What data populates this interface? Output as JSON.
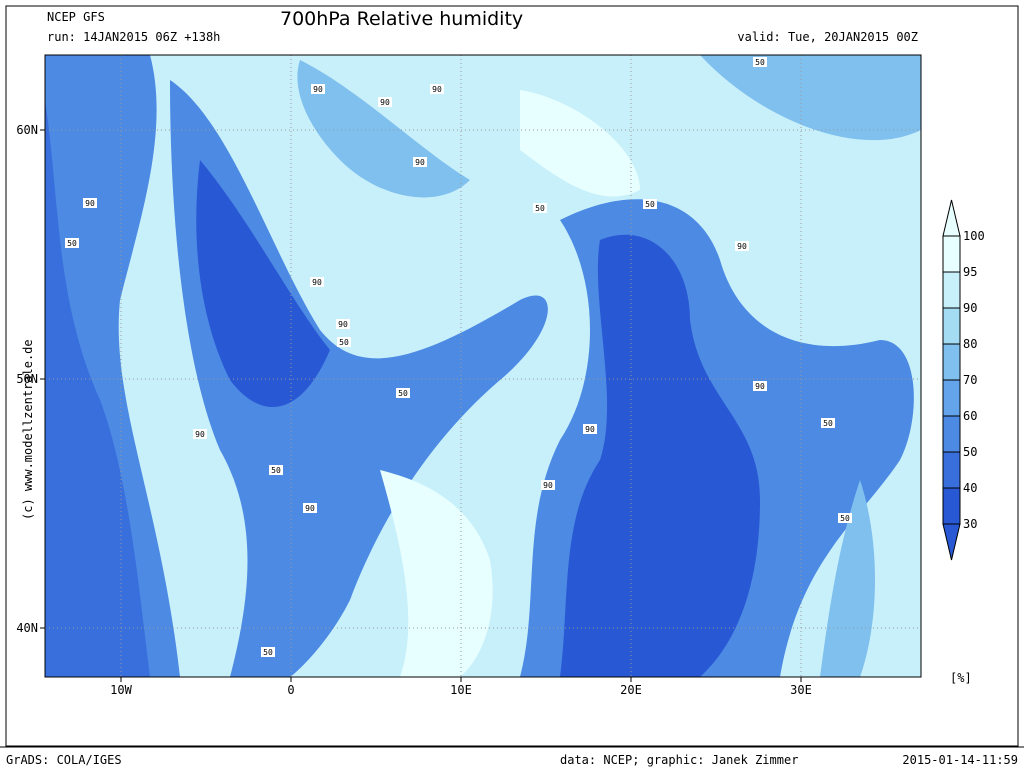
{
  "header": {
    "model": "NCEP GFS",
    "run": "run: 14JAN2015 06Z +138h",
    "title": "700hPa Relative humidity",
    "valid": "valid: Tue, 20JAN2015 00Z"
  },
  "lat_labels": [
    "60N",
    "50N",
    "40N"
  ],
  "lon_labels": [
    "10W",
    "0",
    "10E",
    "20E",
    "30E"
  ],
  "colorbar": {
    "labels": [
      "100",
      "95",
      "90",
      "80",
      "70",
      "60",
      "50",
      "40",
      "30"
    ],
    "unit": "[%]",
    "colors": [
      "#e8ffff",
      "#c8f0fa",
      "#a4dcf4",
      "#80c0ee",
      "#64a4ea",
      "#4c8ae4",
      "#386fdc",
      "#2858d4"
    ]
  },
  "contour_labels": [
    "90",
    "90",
    "90",
    "90",
    "90",
    "50",
    "90",
    "50",
    "90",
    "50",
    "50",
    "90",
    "50",
    "50",
    "90",
    "50",
    "90",
    "90",
    "50",
    "90",
    "90",
    "50",
    "50"
  ],
  "side_credit": "(c) www.modellzentrale.de",
  "footer": {
    "software": "GrADS: COLA/IGES",
    "credit": "data: NCEP; graphic: Janek Zimmer",
    "timestamp": "2015-01-14-11:59"
  }
}
